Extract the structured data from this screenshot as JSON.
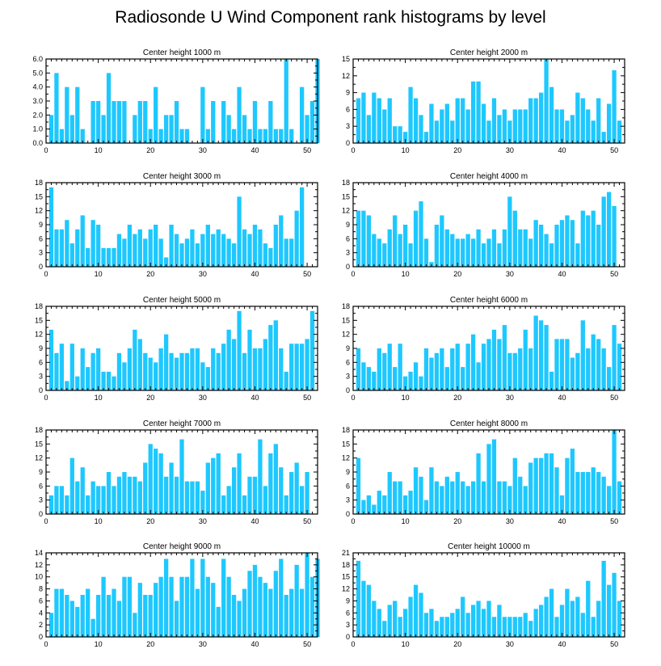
{
  "title": "Radiosonde U Wind Component rank histograms by level",
  "colors": {
    "bar": "#1ec8ff",
    "axis": "#000000"
  },
  "chart_data": [
    {
      "type": "bar",
      "title": "Center height 1000 m",
      "xlim": [
        0,
        52
      ],
      "xticks": [
        0,
        10,
        20,
        30,
        40,
        50
      ],
      "ylim": [
        0,
        6
      ],
      "yticks": [
        "0.0",
        "1.0",
        "2.0",
        "3.0",
        "4.0",
        "5.0",
        "6.0"
      ],
      "values": [
        2,
        5,
        1,
        4,
        2,
        4,
        1,
        0,
        3,
        3,
        2,
        5,
        3,
        3,
        3,
        0,
        2,
        3,
        3,
        1,
        4,
        1,
        2,
        2,
        3,
        1,
        1,
        0,
        0,
        4,
        1,
        3,
        0,
        3,
        2,
        1,
        4,
        2,
        1,
        3,
        1,
        1,
        3,
        1,
        1,
        6,
        1,
        0,
        4,
        2,
        3,
        6
      ]
    },
    {
      "type": "bar",
      "title": "Center height 2000 m",
      "xlim": [
        0,
        52
      ],
      "xticks": [
        0,
        10,
        20,
        30,
        40,
        50
      ],
      "ylim": [
        0,
        15
      ],
      "yticks": [
        "0",
        "3",
        "6",
        "9",
        "12",
        "15"
      ],
      "values": [
        8,
        9,
        5,
        9,
        8,
        6,
        8,
        3,
        3,
        2,
        10,
        8,
        5,
        2,
        7,
        4,
        6,
        7,
        4,
        8,
        8,
        6,
        11,
        11,
        7,
        4,
        8,
        5,
        6,
        4,
        6,
        6,
        6,
        8,
        8,
        9,
        15,
        10,
        6,
        6,
        4,
        5,
        9,
        8,
        6,
        4,
        8,
        2,
        7,
        13,
        4
      ]
    },
    {
      "type": "bar",
      "title": "Center height 3000 m",
      "xlim": [
        0,
        52
      ],
      "xticks": [
        0,
        10,
        20,
        30,
        40,
        50
      ],
      "ylim": [
        0,
        18
      ],
      "yticks": [
        "0",
        "3",
        "6",
        "9",
        "12",
        "15",
        "18"
      ],
      "values": [
        17,
        8,
        8,
        10,
        5,
        8,
        11,
        4,
        10,
        9,
        4,
        4,
        4,
        7,
        6,
        9,
        7,
        8,
        6,
        8,
        9,
        6,
        2,
        9,
        7,
        5,
        6,
        8,
        5,
        7,
        9,
        7,
        8,
        7,
        6,
        5,
        15,
        8,
        7,
        9,
        8,
        5,
        4,
        9,
        11,
        6,
        6,
        12,
        17
      ]
    },
    {
      "type": "bar",
      "title": "Center height 4000 m",
      "xlim": [
        0,
        52
      ],
      "xticks": [
        0,
        10,
        20,
        30,
        40,
        50
      ],
      "ylim": [
        0,
        18
      ],
      "yticks": [
        "0",
        "3",
        "6",
        "9",
        "12",
        "15",
        "18"
      ],
      "values": [
        12,
        12,
        11,
        7,
        6,
        5,
        8,
        11,
        7,
        9,
        5,
        12,
        14,
        6,
        1,
        9,
        11,
        8,
        7,
        6,
        6,
        7,
        6,
        8,
        5,
        6,
        8,
        5,
        8,
        15,
        12,
        8,
        8,
        6,
        10,
        9,
        7,
        5,
        9,
        10,
        11,
        10,
        5,
        12,
        11,
        12,
        9,
        15,
        16,
        13
      ]
    },
    {
      "type": "bar",
      "title": "Center height 5000 m",
      "xlim": [
        0,
        52
      ],
      "xticks": [
        0,
        10,
        20,
        30,
        40,
        50
      ],
      "ylim": [
        0,
        18
      ],
      "yticks": [
        "0",
        "3",
        "6",
        "9",
        "12",
        "15",
        "18"
      ],
      "values": [
        13,
        8,
        10,
        2,
        10,
        3,
        9,
        5,
        8,
        9,
        4,
        4,
        3,
        8,
        6,
        9,
        13,
        11,
        8,
        7,
        6,
        9,
        12,
        8,
        7,
        8,
        8,
        9,
        9,
        6,
        5,
        9,
        8,
        10,
        13,
        11,
        17,
        8,
        13,
        9,
        9,
        11,
        14,
        15,
        9,
        4,
        10,
        10,
        10,
        11,
        17
      ]
    },
    {
      "type": "bar",
      "title": "Center height 6000 m",
      "xlim": [
        0,
        52
      ],
      "xticks": [
        0,
        10,
        20,
        30,
        40,
        50
      ],
      "ylim": [
        0,
        18
      ],
      "yticks": [
        "0",
        "3",
        "6",
        "9",
        "12",
        "15",
        "18"
      ],
      "values": [
        9,
        6,
        5,
        4,
        9,
        8,
        10,
        5,
        10,
        3,
        4,
        6,
        3,
        9,
        7,
        8,
        9,
        5,
        9,
        10,
        5,
        10,
        12,
        6,
        10,
        11,
        13,
        11,
        14,
        8,
        8,
        9,
        13,
        9,
        16,
        15,
        14,
        4,
        11,
        11,
        11,
        7,
        8,
        15,
        9,
        12,
        11,
        9,
        5,
        14,
        10
      ]
    },
    {
      "type": "bar",
      "title": "Center height 7000 m",
      "xlim": [
        0,
        52
      ],
      "xticks": [
        0,
        10,
        20,
        30,
        40,
        50
      ],
      "ylim": [
        0,
        18
      ],
      "yticks": [
        "0",
        "3",
        "6",
        "9",
        "12",
        "15",
        "18"
      ],
      "values": [
        4,
        6,
        6,
        4,
        12,
        7,
        10,
        4,
        7,
        6,
        6,
        9,
        6,
        8,
        9,
        8,
        8,
        7,
        11,
        15,
        14,
        13,
        8,
        11,
        8,
        16,
        7,
        7,
        7,
        5,
        11,
        12,
        13,
        4,
        6,
        10,
        13,
        4,
        8,
        8,
        16,
        6,
        13,
        15,
        10,
        4,
        9,
        11,
        6,
        9
      ]
    },
    {
      "type": "bar",
      "title": "Center height 8000 m",
      "xlim": [
        0,
        52
      ],
      "xticks": [
        0,
        10,
        20,
        30,
        40,
        50
      ],
      "ylim": [
        0,
        18
      ],
      "yticks": [
        "0",
        "3",
        "6",
        "9",
        "12",
        "15",
        "18"
      ],
      "values": [
        12,
        3,
        4,
        2,
        5,
        4,
        9,
        7,
        7,
        4,
        5,
        10,
        8,
        3,
        10,
        7,
        6,
        8,
        7,
        9,
        7,
        6,
        7,
        13,
        7,
        15,
        16,
        7,
        7,
        6,
        12,
        8,
        6,
        11,
        12,
        12,
        13,
        13,
        10,
        4,
        12,
        14,
        9,
        9,
        9,
        10,
        9,
        8,
        6,
        18,
        7
      ]
    },
    {
      "type": "bar",
      "title": "Center height 9000 m",
      "xlim": [
        0,
        52
      ],
      "xticks": [
        0,
        10,
        20,
        30,
        40,
        50
      ],
      "ylim": [
        0,
        14
      ],
      "yticks": [
        "0",
        "2",
        "4",
        "6",
        "8",
        "10",
        "12",
        "14"
      ],
      "values": [
        4,
        8,
        8,
        7,
        6,
        5,
        7,
        8,
        3,
        7,
        10,
        7,
        8,
        6,
        10,
        10,
        4,
        9,
        7,
        7,
        9,
        10,
        13,
        10,
        6,
        10,
        10,
        13,
        8,
        13,
        10,
        9,
        5,
        13,
        10,
        7,
        6,
        8,
        11,
        12,
        10,
        9,
        8,
        11,
        13,
        7,
        8,
        12,
        8,
        14,
        10,
        13
      ]
    },
    {
      "type": "bar",
      "title": "Center height 10000 m",
      "xlim": [
        0,
        52
      ],
      "xticks": [
        0,
        10,
        20,
        30,
        40,
        50
      ],
      "ylim": [
        0,
        21
      ],
      "yticks": [
        "0",
        "3",
        "6",
        "9",
        "12",
        "15",
        "18",
        "21"
      ],
      "values": [
        19,
        14,
        13,
        9,
        7,
        4,
        8,
        9,
        5,
        7,
        10,
        13,
        11,
        6,
        7,
        4,
        5,
        5,
        6,
        7,
        10,
        6,
        8,
        9,
        7,
        9,
        5,
        8,
        5,
        5,
        5,
        5,
        6,
        4,
        7,
        8,
        10,
        12,
        5,
        8,
        12,
        9,
        10,
        6,
        14,
        5,
        9,
        19,
        13,
        16,
        9
      ]
    }
  ]
}
